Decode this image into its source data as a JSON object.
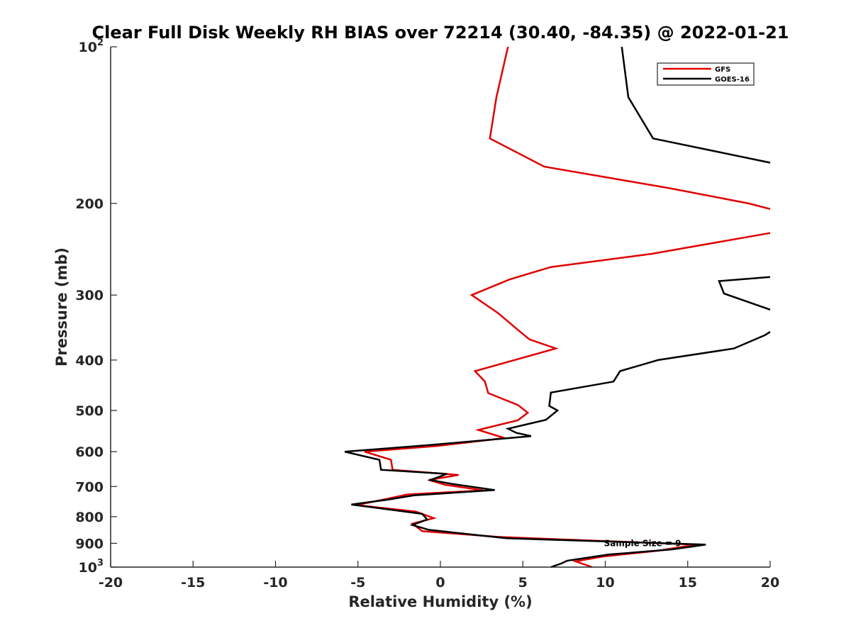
{
  "chart_data": {
    "type": "line",
    "title": "Clear Full Disk Weekly RH BIAS over 72214 (30.40, -84.35) @ 2022-01-21",
    "xlabel": "Relative Humidity (%)",
    "ylabel": "Pressure (mb)",
    "xlim": [
      -20,
      20
    ],
    "ylim": [
      1000,
      100
    ],
    "y_scale": "log",
    "y_reversed": true,
    "grid": false,
    "legend_position": "top-right",
    "x_ticks": [
      "-20",
      "-15",
      "-10",
      "-5",
      "0",
      "5",
      "10",
      "15",
      "20"
    ],
    "y_ticks": [
      {
        "value": 100,
        "base": "10",
        "exp": "2"
      },
      {
        "value": 200,
        "base": "200",
        "exp": ""
      },
      {
        "value": 300,
        "base": "300",
        "exp": ""
      },
      {
        "value": 400,
        "base": "400",
        "exp": ""
      },
      {
        "value": 500,
        "base": "500",
        "exp": ""
      },
      {
        "value": 600,
        "base": "600",
        "exp": ""
      },
      {
        "value": 700,
        "base": "700",
        "exp": ""
      },
      {
        "value": 800,
        "base": "800",
        "exp": ""
      },
      {
        "value": 900,
        "base": "900",
        "exp": ""
      },
      {
        "value": 1000,
        "base": "10",
        "exp": "3"
      }
    ],
    "annotation": "Sample Size = 9",
    "annotation_at": {
      "x": 12.5,
      "p": 900
    },
    "series": [
      {
        "name": "GFS",
        "color": "#e00000",
        "segments": [
          [
            [
              4.1,
              100
            ],
            [
              3.4,
              125
            ],
            [
              3.0,
              150
            ],
            [
              6.3,
              170
            ],
            [
              13.9,
              187
            ],
            [
              18.7,
              200
            ],
            [
              20,
              205
            ]
          ],
          [
            [
              20,
              228
            ],
            [
              12.8,
              250
            ],
            [
              6.7,
              265
            ],
            [
              4.2,
              280
            ],
            [
              1.9,
              300
            ],
            [
              3.5,
              325
            ],
            [
              4.7,
              350
            ],
            [
              5.4,
              365
            ],
            [
              7.0,
              380
            ],
            [
              2.1,
              420
            ],
            [
              2.7,
              440
            ],
            [
              2.9,
              463
            ],
            [
              4.7,
              488
            ],
            [
              5.3,
              505
            ],
            [
              4.7,
              522
            ],
            [
              2.3,
              545
            ],
            [
              3.9,
              565
            ],
            [
              -0.2,
              585
            ],
            [
              -4.6,
              600
            ],
            [
              -3.0,
              622
            ],
            [
              -2.9,
              650
            ],
            [
              1.1,
              665
            ],
            [
              -0.7,
              680
            ],
            [
              0.3,
              695
            ],
            [
              2.6,
              712
            ],
            [
              -2.0,
              725
            ],
            [
              -3.3,
              740
            ],
            [
              -5.1,
              760
            ],
            [
              -1.5,
              782
            ],
            [
              -0.4,
              805
            ],
            [
              -1.7,
              825
            ],
            [
              -1.1,
              853
            ],
            [
              3.5,
              875
            ],
            [
              15.5,
              905
            ],
            [
              13.2,
              930
            ],
            [
              9.8,
              955
            ],
            [
              8.2,
              975
            ],
            [
              9.2,
              1000
            ]
          ]
        ]
      },
      {
        "name": "GOES-16",
        "color": "#000000",
        "segments": [
          [
            [
              11.0,
              100
            ],
            [
              11.4,
              125
            ],
            [
              12.9,
              150
            ],
            [
              20,
              167
            ]
          ],
          [
            [
              20,
              277
            ],
            [
              16.9,
              282
            ],
            [
              17.2,
              298
            ],
            [
              20,
              320
            ]
          ],
          [
            [
              20,
              353
            ],
            [
              19.7,
              358
            ],
            [
              17.8,
              380
            ],
            [
              13.2,
              400
            ],
            [
              10.9,
              420
            ],
            [
              10.5,
              440
            ],
            [
              6.7,
              462
            ],
            [
              6.6,
              490
            ],
            [
              7.1,
              500
            ],
            [
              6.4,
              521
            ],
            [
              4.1,
              542
            ],
            [
              4.6,
              552
            ],
            [
              5.5,
              560
            ],
            [
              -0.5,
              582
            ],
            [
              -5.8,
              600
            ],
            [
              -3.7,
              622
            ],
            [
              -3.6,
              650
            ],
            [
              0.4,
              662
            ],
            [
              -0.6,
              680
            ],
            [
              0.7,
              692
            ],
            [
              3.3,
              711
            ],
            [
              -1.6,
              728
            ],
            [
              -3.2,
              742
            ],
            [
              -5.4,
              758
            ],
            [
              -1.1,
              790
            ],
            [
              -0.8,
              810
            ],
            [
              -1.7,
              830
            ],
            [
              -0.7,
              848
            ],
            [
              4.0,
              880
            ],
            [
              16.1,
              905
            ],
            [
              14.0,
              925
            ],
            [
              10.2,
              946
            ],
            [
              7.7,
              972
            ],
            [
              7.3,
              985
            ],
            [
              6.7,
              1000
            ]
          ]
        ]
      }
    ]
  }
}
